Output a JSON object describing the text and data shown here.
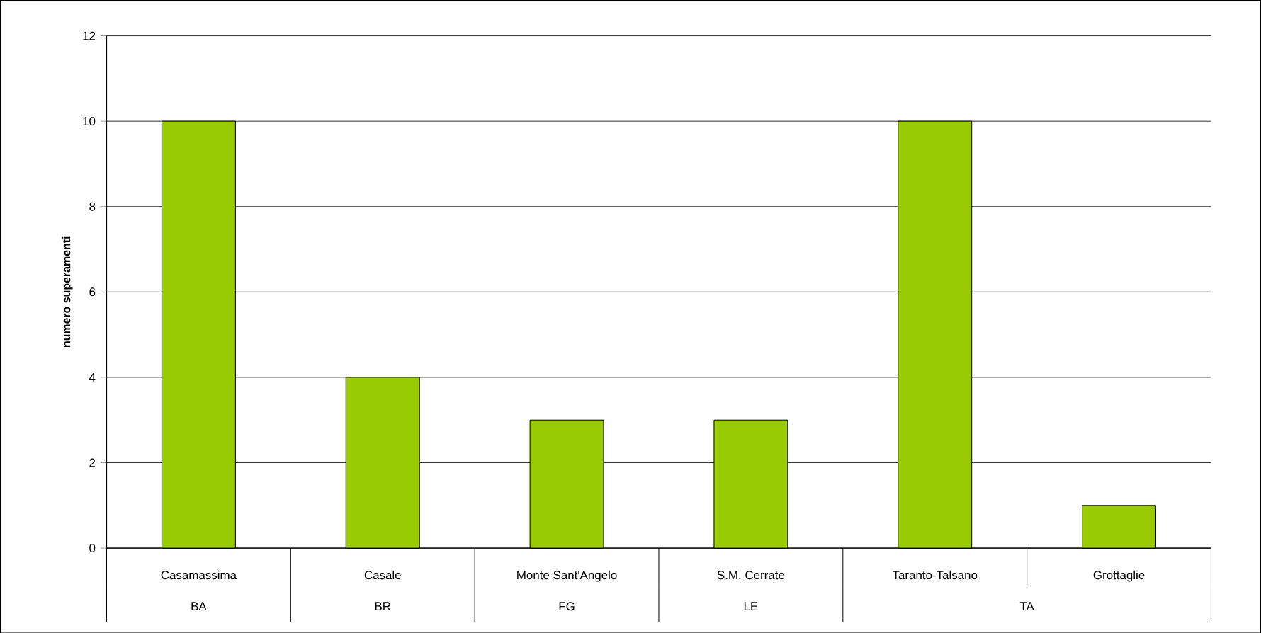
{
  "chart_data": {
    "type": "bar",
    "ylabel": "numero superamenti",
    "categories": [
      "Casamassima",
      "Casale",
      "Monte Sant'Angelo",
      "S.M. Cerrate",
      "Taranto-Talsano",
      "Grottaglie"
    ],
    "values": [
      10,
      4,
      3,
      3,
      10,
      1
    ],
    "color": "#99cc00",
    "ylim": [
      0,
      12
    ],
    "yticks": [
      0,
      2,
      4,
      6,
      8,
      10,
      12
    ],
    "grid": "y",
    "annotations": [
      "BA",
      "BR",
      "FG",
      "LE",
      "TA"
    ]
  }
}
